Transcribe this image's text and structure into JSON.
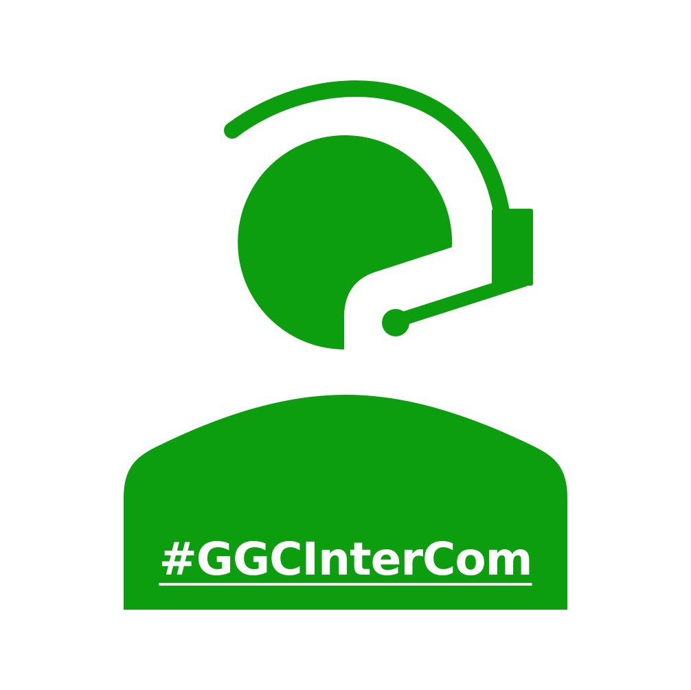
{
  "brand": {
    "color": "#0d9e10",
    "background": "#ffffff"
  },
  "icon": "headset-operator-icon",
  "hashtag": "#GGCInterCom"
}
